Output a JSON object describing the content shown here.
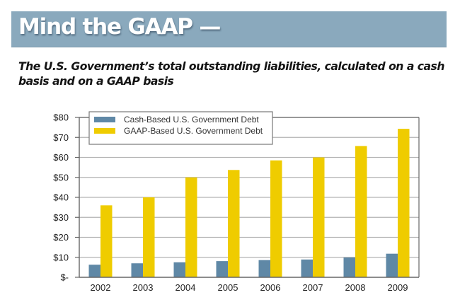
{
  "header": {
    "title": "Mind the GAAP —"
  },
  "subtitle": "The U.S. Government’s total outstanding liabilities, calculated on a cash basis and on a GAAP basis",
  "colors": {
    "header_band": "#8aa9bd",
    "cash_series": "#5f88a6",
    "gaap_series": "#efcc00",
    "gridline": "#b3b3b3",
    "axis": "#666666"
  },
  "chart_data": {
    "type": "bar",
    "title": "Mind the GAAP —",
    "subtitle": "The U.S. Government’s total outstanding liabilities, calculated on a cash basis and on a GAAP basis",
    "xlabel": "",
    "ylabel": "",
    "categories": [
      "2002",
      "2003",
      "2004",
      "2005",
      "2006",
      "2007",
      "2008",
      "2009"
    ],
    "series": [
      {
        "name": "Cash-Based U.S. Government Debt",
        "color": "#5f88a6",
        "values": [
          6.3,
          7.0,
          7.5,
          8.1,
          8.6,
          8.9,
          9.9,
          11.8
        ]
      },
      {
        "name": "GAAP-Based U.S. Government Debt",
        "color": "#efcc00",
        "values": [
          36.0,
          40.0,
          50.0,
          53.7,
          58.5,
          60.0,
          65.7,
          74.3
        ]
      }
    ],
    "ylim": [
      0,
      80
    ],
    "yticks": [
      0,
      10,
      20,
      30,
      40,
      50,
      60,
      70,
      80
    ],
    "ytick_labels": [
      "$-",
      "$10",
      "$20",
      "$30",
      "$40",
      "$50",
      "$60",
      "$70",
      "$80"
    ],
    "grid": true,
    "legend_position": "top-left"
  }
}
